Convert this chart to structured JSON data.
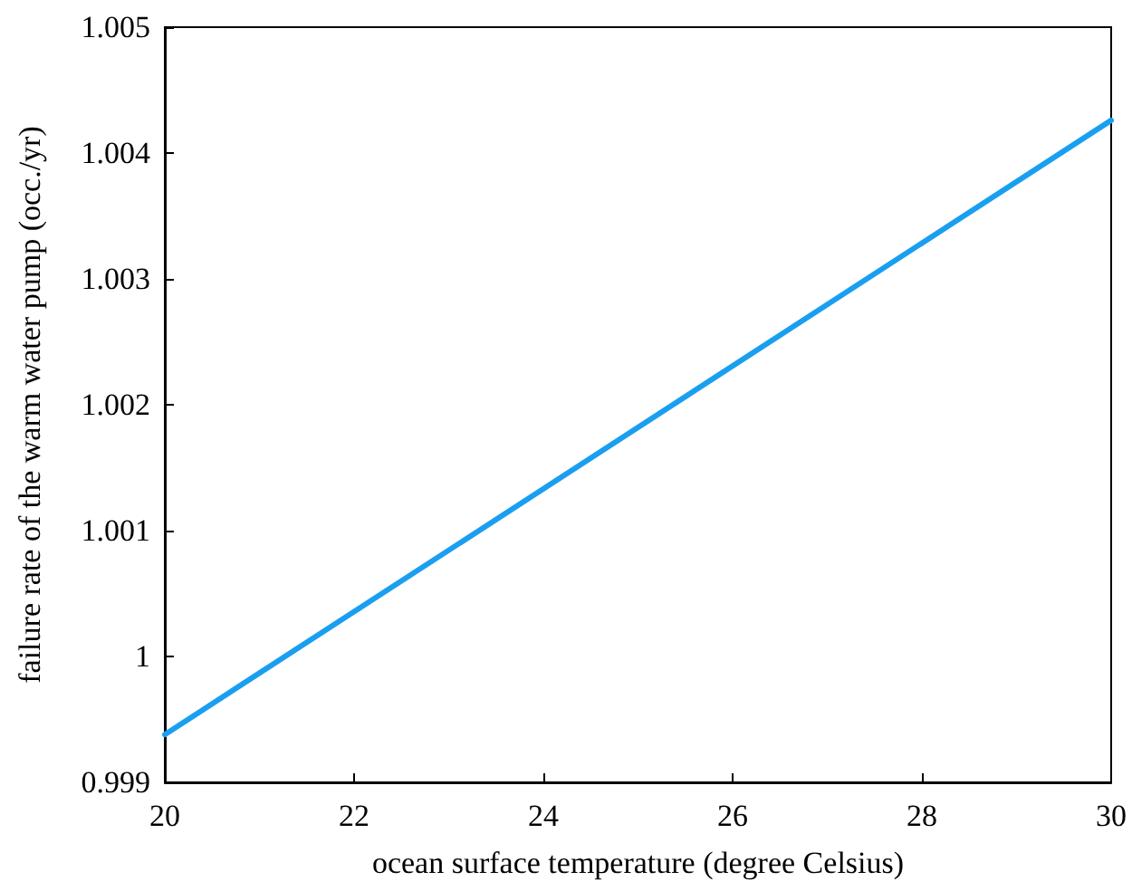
{
  "chart_data": {
    "type": "line",
    "xlabel": "ocean surface temperature (degree Celsius)",
    "ylabel": "failure rate of the warm water pump (occ./yr)",
    "x": [
      20,
      30
    ],
    "series": [
      {
        "color": "#1a9ff0",
        "values": [
          0.99938,
          1.00426
        ]
      }
    ],
    "xlim": [
      20,
      30
    ],
    "xticks": [
      20,
      22,
      24,
      26,
      28,
      30
    ],
    "ylim": [
      0.999,
      1.005
    ],
    "yticks": [
      0.999,
      1,
      1.001,
      1.002,
      1.003,
      1.004,
      1.005
    ],
    "grid": false,
    "marker": "none",
    "line_style": "solid"
  }
}
